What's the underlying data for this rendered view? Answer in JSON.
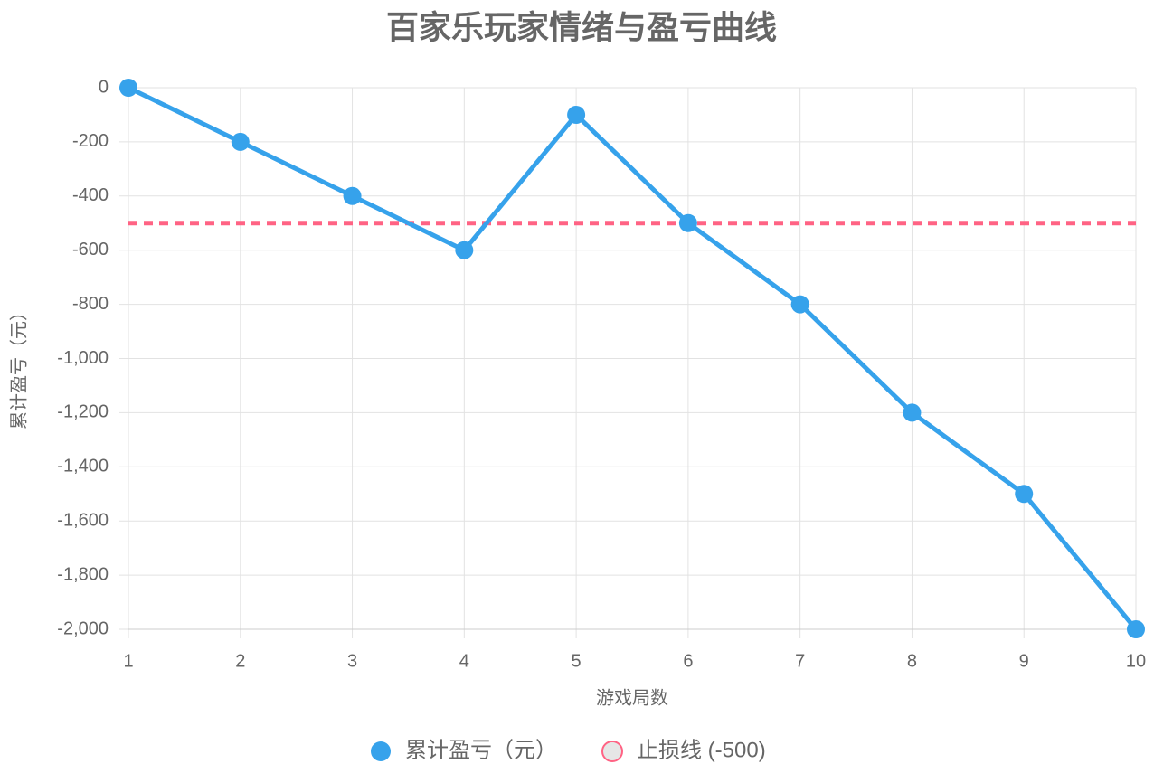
{
  "chart_data": {
    "type": "line",
    "title": "百家乐玩家情绪与盈亏曲线",
    "x_label": "游戏局数",
    "y_label": "累计盈亏（元）",
    "categories": [
      "1",
      "2",
      "3",
      "4",
      "5",
      "6",
      "7",
      "8",
      "9",
      "10"
    ],
    "series": [
      {
        "name": "累计盈亏（元）",
        "color": "#36a2eb",
        "values": [
          0,
          -200,
          -400,
          -600,
          -100,
          -500,
          -800,
          -1200,
          -1500,
          -2000
        ],
        "dashed": false,
        "points": true
      },
      {
        "name": "止损线 (-500)",
        "color": "#ff6384",
        "values": [
          -500,
          -500,
          -500,
          -500,
          -500,
          -500,
          -500,
          -500,
          -500,
          -500
        ],
        "dashed": true,
        "points": false
      }
    ],
    "ylim": [
      -2000,
      0
    ],
    "yticks": [
      0,
      -200,
      -400,
      -600,
      -800,
      {
        "value": -1000,
        "label": "-1,000"
      },
      {
        "value": -1200,
        "label": "-1,200"
      },
      {
        "value": -1400,
        "label": "-1,400"
      },
      {
        "value": -1600,
        "label": "-1,600"
      },
      {
        "value": -1800,
        "label": "-1,800"
      },
      {
        "value": -2000,
        "label": "-2,000"
      }
    ],
    "grid": true,
    "legend": "bottom"
  }
}
